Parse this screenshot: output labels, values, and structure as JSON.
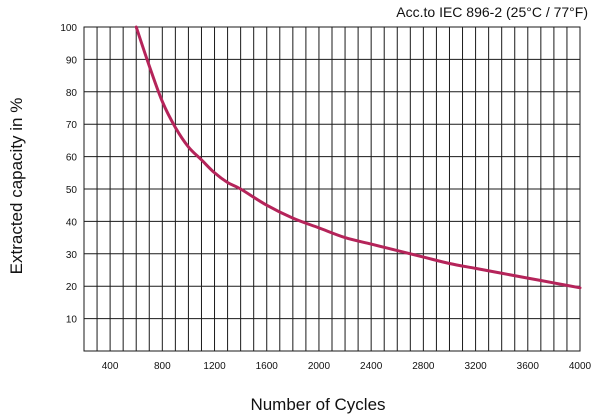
{
  "chart_data": {
    "type": "line",
    "title": "Acc.to IEC 896-2 (25°C / 77°F)",
    "xlabel": "Number of Cycles",
    "ylabel": "Extracted capacity in %",
    "xlim": [
      200,
      4000
    ],
    "ylim": [
      0,
      100
    ],
    "xticks": [
      400,
      800,
      1200,
      1600,
      2000,
      2400,
      2800,
      3200,
      3600,
      4000
    ],
    "yticks": [
      10,
      20,
      30,
      40,
      50,
      60,
      70,
      80,
      90,
      100
    ],
    "grid": true,
    "line_color": "#b5245a",
    "series": [
      {
        "x": [
          600,
          700,
          800,
          900,
          1000,
          1100,
          1200,
          1300,
          1400,
          1600,
          1800,
          2000,
          2200,
          2400,
          2600,
          2800,
          3000,
          3200,
          3400,
          3600,
          3800,
          4000
        ],
        "values": [
          100,
          88,
          77,
          69,
          63,
          59,
          55,
          52,
          50,
          45,
          41,
          38,
          35,
          33,
          31,
          29,
          27,
          25.5,
          24,
          22.5,
          21,
          19.5
        ]
      }
    ]
  }
}
